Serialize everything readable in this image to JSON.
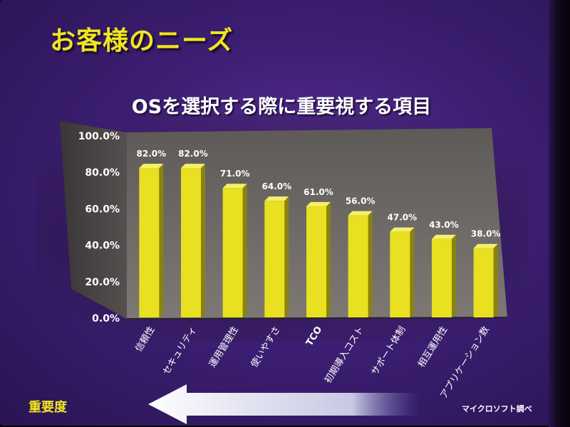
{
  "slide": {
    "title": "お客様のニーズ",
    "footer_label": "重要度",
    "source_note": "マイクロソフト調べ"
  },
  "colors": {
    "background": "#3d1f74",
    "title": "#f0e61e",
    "bar_front": "#e8e020",
    "bar_side": "#8a8210",
    "bar_top": "#f5f06a",
    "plot_wall": "#6f6a66"
  },
  "chart_data": {
    "type": "bar",
    "title": "OSを選択する際に重要視する項目",
    "categories": [
      "信頼性",
      "セキュリティ",
      "運用管理性",
      "使いやすさ",
      "TCO",
      "初期導入コスト",
      "サポート体制",
      "相互運用性",
      "アプリケーション数"
    ],
    "values": [
      82.0,
      82.0,
      71.0,
      64.0,
      61.0,
      56.0,
      47.0,
      43.0,
      38.0
    ],
    "data_labels": [
      "82.0%",
      "82.0%",
      "71.0%",
      "64.0%",
      "61.0%",
      "56.0%",
      "47.0%",
      "43.0%",
      "38.0%"
    ],
    "ylim": [
      0,
      100
    ],
    "y_ticks": [
      "0.0%",
      "20.0%",
      "40.0%",
      "60.0%",
      "80.0%",
      "100.0%"
    ],
    "xlabel": "",
    "ylabel": "",
    "grid": false,
    "legend": "none"
  }
}
